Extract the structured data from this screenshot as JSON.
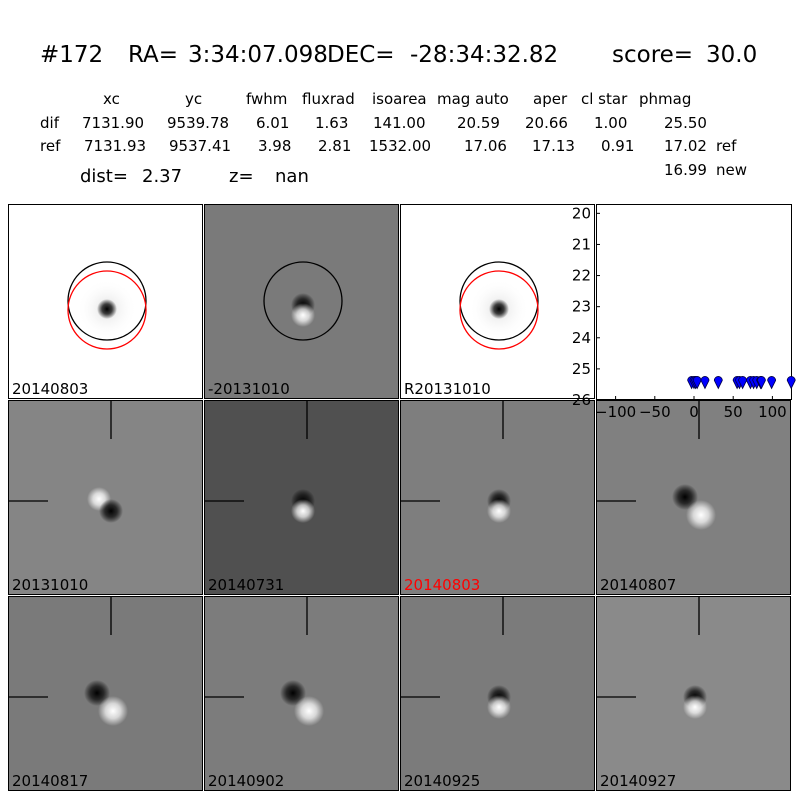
{
  "header": {
    "id": "#172",
    "ra_label": "RA=",
    "ra": "3:34:07.098",
    "dec_label": "DEC=",
    "dec": "-28:34:32.82",
    "score_label": "score=",
    "score": "30.0"
  },
  "table": {
    "columns": [
      "xc",
      "yc",
      "fwhm",
      "fluxrad",
      "isoarea",
      "mag auto",
      "aper",
      "cl star",
      "phmag"
    ],
    "rows": [
      {
        "label": "dif",
        "values": [
          "7131.90",
          "9539.78",
          "6.01",
          "1.63",
          "141.00",
          "20.59",
          "20.66",
          "1.00",
          "25.50"
        ],
        "suffix": ""
      },
      {
        "label": "ref",
        "values": [
          "7131.93",
          "9537.41",
          "3.98",
          "2.81",
          "1532.00",
          "17.06",
          "17.13",
          "0.91",
          "17.02"
        ],
        "suffix": "ref"
      }
    ],
    "new_mag": "16.99",
    "new_label": "new"
  },
  "dist": {
    "label": "dist=",
    "value": "2.37",
    "z_label": "z=",
    "z_value": "nan"
  },
  "panels": [
    {
      "label": "20140803",
      "bg": "#ffffff",
      "kind": "star",
      "circles": "both"
    },
    {
      "label": "-20131010",
      "bg": "#7a7a7a",
      "kind": "dipole-v",
      "circles": "black"
    },
    {
      "label": "R20131010",
      "bg": "#ffffff",
      "kind": "star",
      "circles": "both"
    },
    {
      "label": "20131010",
      "bg": "#858585",
      "kind": "dipole-a",
      "circles": "none"
    },
    {
      "label": "20140731",
      "bg": "#505050",
      "kind": "dipole-v",
      "circles": "none"
    },
    {
      "label": "20140803",
      "bg": "#7e7e7e",
      "kind": "dipole-v",
      "circles": "none",
      "highlight": "#ff0000"
    },
    {
      "label": "20140807",
      "bg": "#808080",
      "kind": "dipole-b",
      "circles": "none"
    },
    {
      "label": "20140817",
      "bg": "#7a7a7a",
      "kind": "dipole-b",
      "circles": "none"
    },
    {
      "label": "20140902",
      "bg": "#7c7c7c",
      "kind": "dipole-b",
      "circles": "none"
    },
    {
      "label": "20140925",
      "bg": "#7b7b7b",
      "kind": "dipole-v",
      "circles": "none"
    },
    {
      "label": "20140927",
      "bg": "#8a8a8a",
      "kind": "dipole-v",
      "circles": "none"
    }
  ],
  "chart_data": {
    "type": "scatter",
    "x_ticks": [
      "−100",
      "−50",
      "0",
      "50",
      "100"
    ],
    "y_ticks": [
      "20",
      "21",
      "22",
      "23",
      "24",
      "25",
      "26"
    ],
    "xlim": [
      -125,
      125
    ],
    "ylim": [
      26,
      19.7
    ],
    "y_inverted": true,
    "marker_color": "#0000ff",
    "points": [
      {
        "x": -3,
        "y": 25.5
      },
      {
        "x": 0,
        "y": 25.5
      },
      {
        "x": 2,
        "y": 25.5
      },
      {
        "x": 4,
        "y": 25.5
      },
      {
        "x": 14,
        "y": 25.5
      },
      {
        "x": 31,
        "y": 25.5
      },
      {
        "x": 55,
        "y": 25.5
      },
      {
        "x": 58,
        "y": 25.5
      },
      {
        "x": 62,
        "y": 25.5
      },
      {
        "x": 72,
        "y": 25.5
      },
      {
        "x": 76,
        "y": 25.5
      },
      {
        "x": 80,
        "y": 25.5
      },
      {
        "x": 85,
        "y": 25.5
      },
      {
        "x": 86,
        "y": 25.5
      },
      {
        "x": 99,
        "y": 25.5
      },
      {
        "x": 124,
        "y": 25.5
      }
    ]
  }
}
